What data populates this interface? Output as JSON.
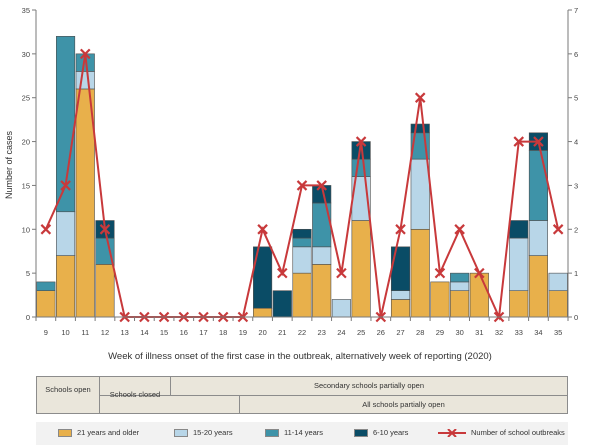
{
  "chart_data": {
    "type": "bar",
    "title": "",
    "xlabel": "Week of illness onset of the first case in the outbreak, alternatively week of reporting (2020)",
    "ylabel": "Number of cases",
    "ylim": [
      0,
      35
    ],
    "y2lim": [
      0,
      7
    ],
    "y_ticks": [
      0,
      5,
      10,
      15,
      20,
      25,
      30,
      35
    ],
    "y2_ticks": [
      0,
      1,
      2,
      3,
      4,
      5,
      6,
      7
    ],
    "categories": [
      "9",
      "10",
      "11",
      "12",
      "13",
      "14",
      "15",
      "16",
      "17",
      "18",
      "19",
      "20",
      "21",
      "22",
      "23",
      "24",
      "25",
      "26",
      "27",
      "28",
      "29",
      "30",
      "31",
      "32",
      "33",
      "34",
      "35"
    ],
    "series": [
      {
        "name": "21 years and older",
        "color": "#e8b04b",
        "values": [
          3,
          7,
          26,
          6,
          0,
          0,
          0,
          0,
          0,
          0,
          0,
          1,
          0,
          5,
          6,
          0,
          11,
          0,
          2,
          10,
          4,
          3,
          5,
          0,
          3,
          7,
          3
        ]
      },
      {
        "name": "15-20 years",
        "color": "#b8d6e8",
        "values": [
          0,
          5,
          2,
          0,
          0,
          0,
          0,
          0,
          0,
          0,
          0,
          0,
          0,
          3,
          2,
          2,
          5,
          0,
          1,
          8,
          0,
          1,
          0,
          0,
          6,
          4,
          2
        ]
      },
      {
        "name": "11-14 years",
        "color": "#3e93a8",
        "values": [
          1,
          20,
          2,
          3,
          0,
          0,
          0,
          0,
          0,
          0,
          0,
          0,
          0,
          1,
          5,
          0,
          2,
          0,
          0,
          3,
          0,
          1,
          0,
          0,
          0,
          8,
          0
        ]
      },
      {
        "name": "6-10 years",
        "color": "#0a4c66",
        "values": [
          0,
          0,
          0,
          2,
          0,
          0,
          0,
          0,
          0,
          0,
          0,
          7,
          3,
          1,
          2,
          0,
          2,
          0,
          5,
          1,
          0,
          0,
          0,
          0,
          2,
          2,
          0
        ]
      }
    ],
    "line_series": {
      "name": "Number of school outbreaks",
      "axis": "right",
      "color": "#c8393b",
      "values": [
        2,
        3,
        6,
        2,
        0,
        0,
        0,
        0,
        0,
        0,
        0,
        2,
        1,
        3,
        3,
        1,
        4,
        0,
        2,
        5,
        1,
        2,
        1,
        0,
        4,
        4,
        2
      ]
    }
  },
  "timeline": {
    "schools_open": "Schools open",
    "schools_closed": "Schools closed",
    "secondary_partially_open": "Secondary schools  partially open",
    "all_partially_open": "All schools partially open"
  }
}
